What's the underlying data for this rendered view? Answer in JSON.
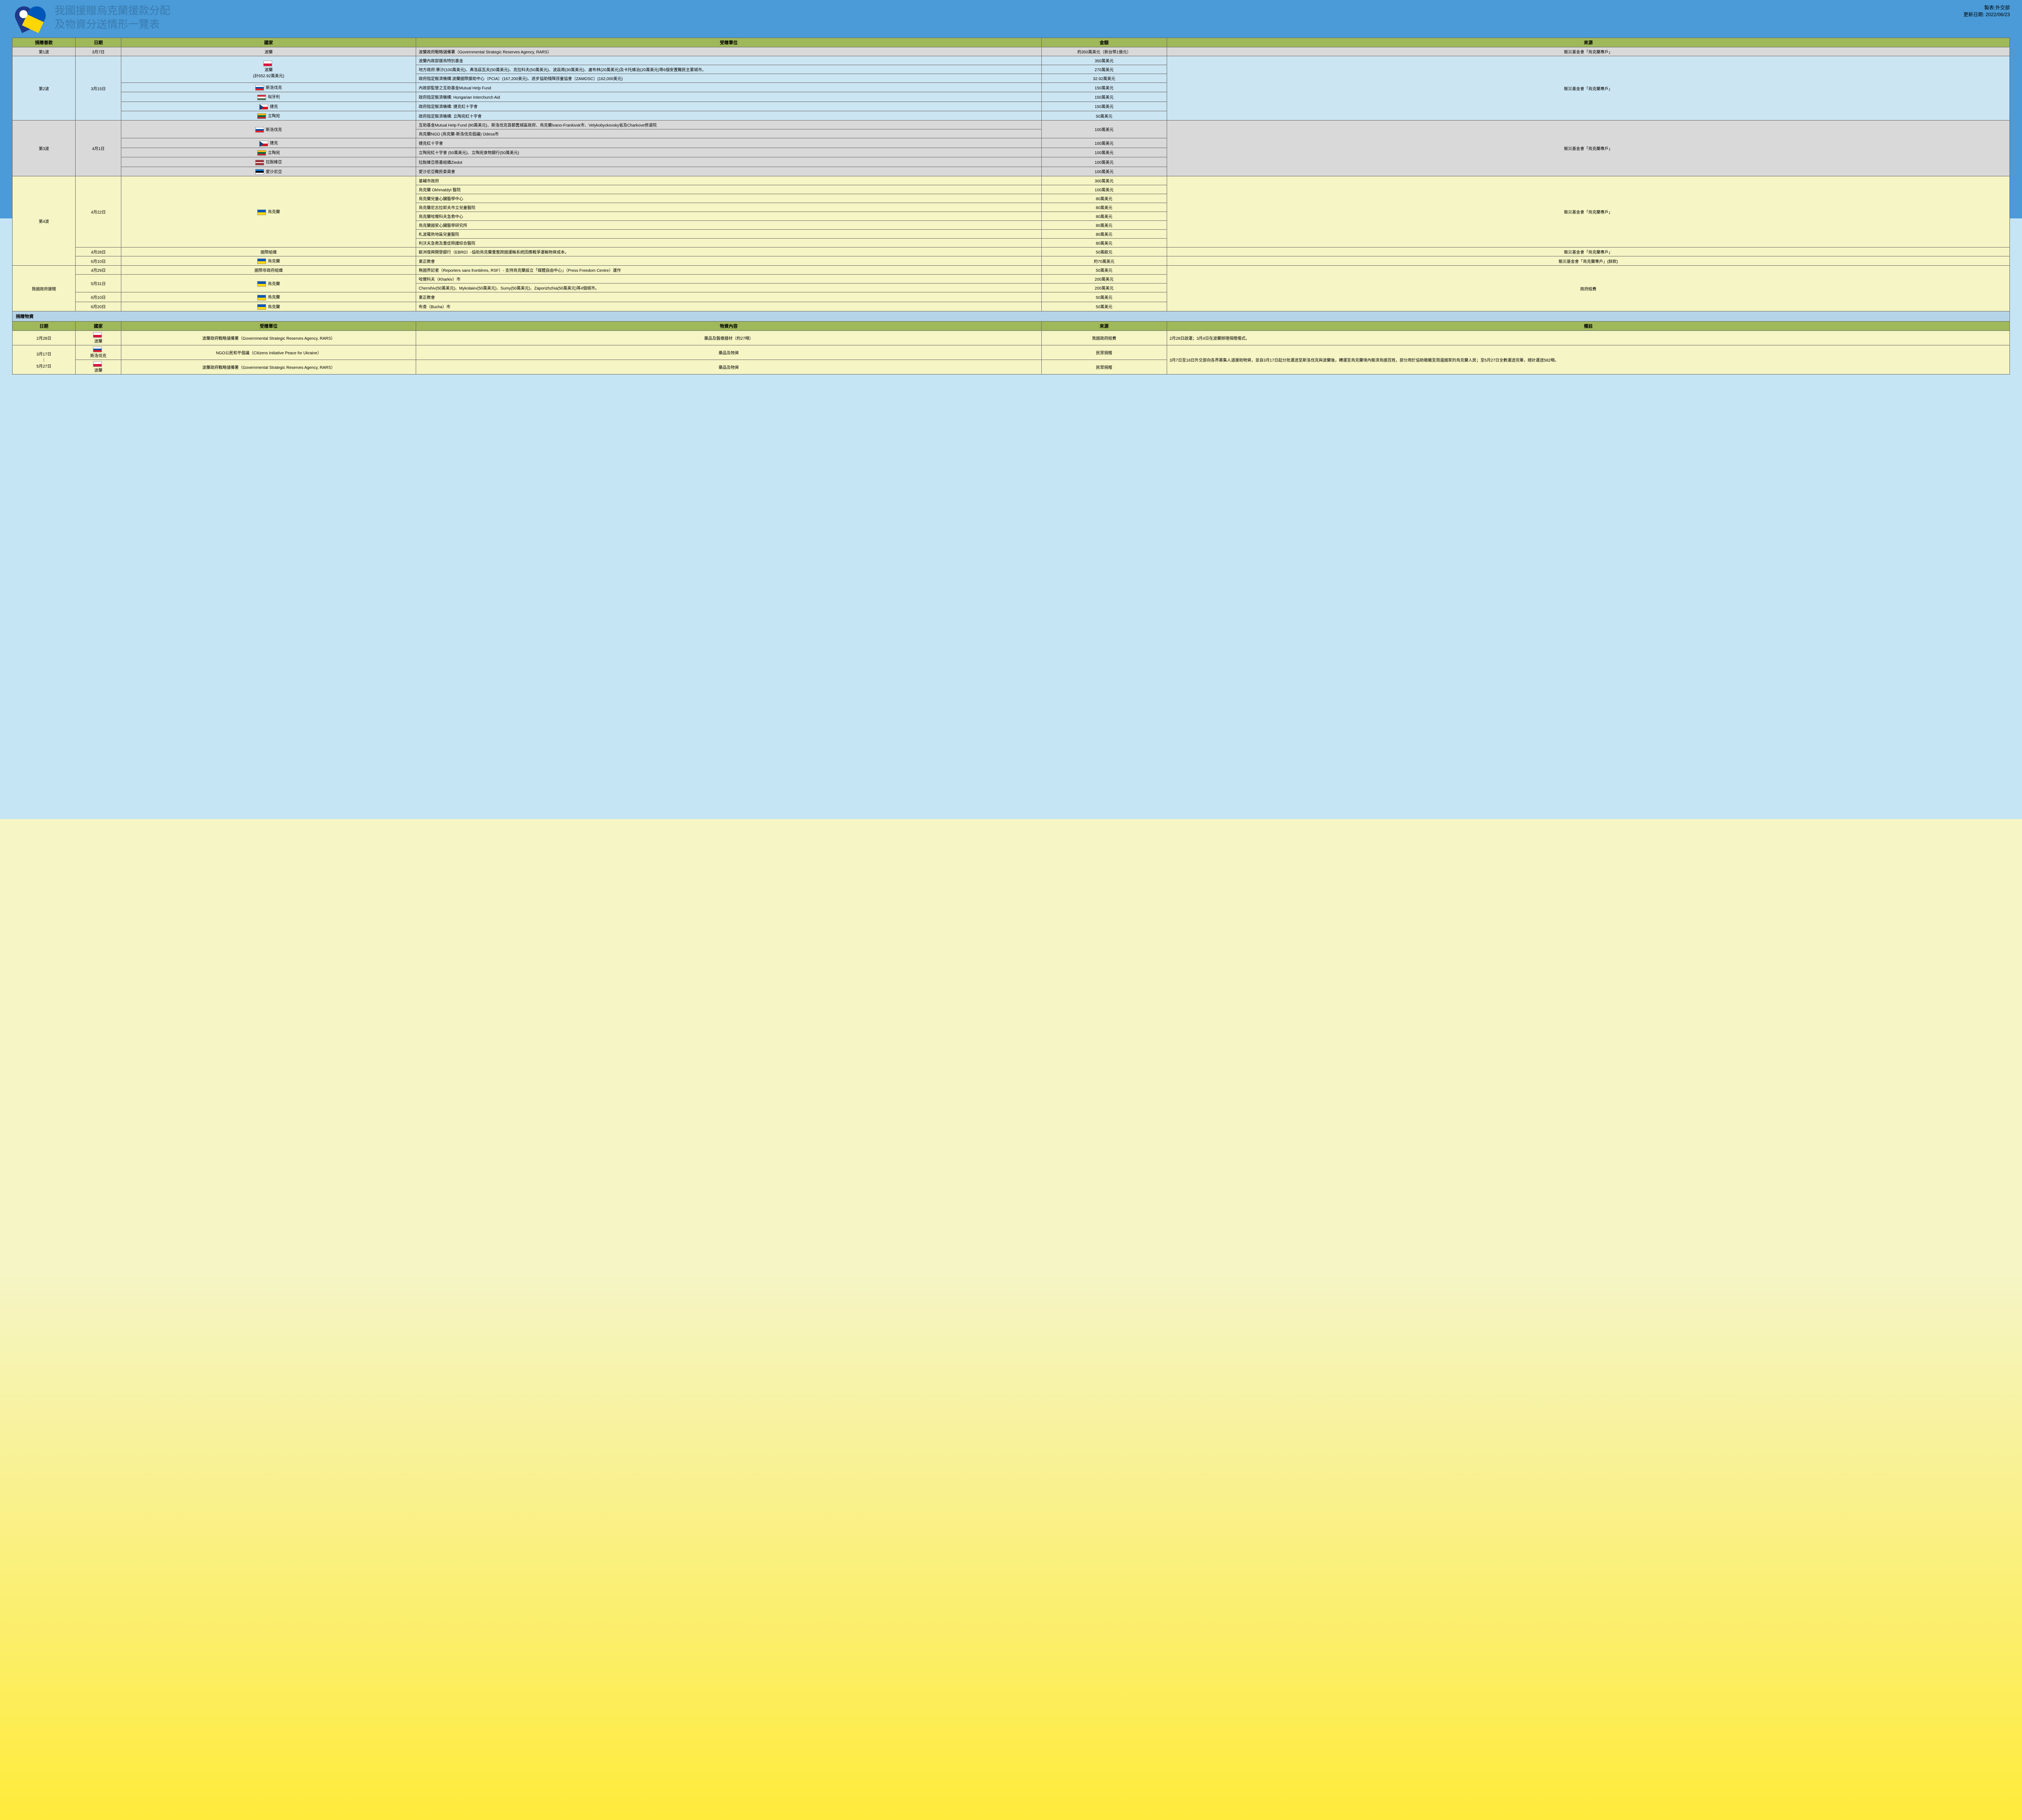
{
  "title1": "我國援贈烏克蘭援款分配",
  "title2": "及物資分送情形一覽表",
  "meta1": "製表:外交部",
  "meta2": "更新日期: 2022/06/23",
  "h": {
    "donate": "捐贈善款",
    "date": "日期",
    "country": "國家",
    "recipient": "受贈單位",
    "amount": "金額",
    "source": "來源",
    "materials": "捐贈物資",
    "content": "物資內容",
    "note": "備註"
  },
  "w1": {
    "wave": "第1波",
    "date": "3月7日",
    "country": "波蘭",
    "recip": "波蘭政府戰略儲備署（Governmental Strategic Reserves Agency, RARS）",
    "amt": "約350萬美元（新台幣1億元）",
    "src": "賑災基金會「烏克蘭專戶」"
  },
  "w2": {
    "wave": "第2波",
    "date": "3月15日",
    "pl": "波蘭",
    "pl_sub": "(計652.92萬美元)",
    "r1": {
      "recip": "波蘭內政部援烏特別基金",
      "amt": "350萬美元"
    },
    "r2": {
      "recip": "地方政府:華沙(100萬美元)、弗洛茲瓦夫(50萬美元)、克拉科夫(50萬美元)、波茲南(30萬美元)、盧布林(20萬美元)及卡托維治(20萬美元)等6個安置難民主要城市。",
      "amt": "270萬美元"
    },
    "r3": {
      "recip": "政府指定賑濟機構:波蘭國際援助中心（PCIA）(167,200美元)、逐步協助殘障孩童協會（ZAMOSC）(162,000美元)",
      "amt": "32.92萬美元"
    },
    "sk": {
      "c": "斯洛伐克",
      "recip": "內政部監管之互助基金Mutual Help Fund",
      "amt": "150萬美元"
    },
    "hu": {
      "c": "匈牙利",
      "recip": "政府指定賑濟機構: Hungarian Interchurch Aid",
      "amt": "150萬美元"
    },
    "cz": {
      "c": "捷克",
      "recip": "政府指定賑濟機構: 捷克紅十字會",
      "amt": "150萬美元"
    },
    "lt": {
      "c": "立陶宛",
      "recip": "政府指定賑濟機構: 立陶宛紅十字會",
      "amt": "50萬美元"
    },
    "src": "賑災基金會「烏克蘭專戶」"
  },
  "w3": {
    "wave": "第3波",
    "date": "4月1日",
    "sk": {
      "c": "斯洛伐克",
      "r1": "互助基金Mutual Help Fund (80萬美元)、斯洛伐克首都舊城區政府、烏克蘭Ivano-Frankivsk市、Velykobyckovsky省及Charkove修道院",
      "r2": "烏克蘭NGO (烏克蘭-斯洛伐克倡議) Odesa市",
      "amt": "100萬美元"
    },
    "cz": {
      "c": "捷克",
      "recip": "捷克紅十字會",
      "amt": "100萬美元"
    },
    "lt": {
      "c": "立陶宛",
      "recip": "立陶宛紅十字會 (50萬美元)、立陶宛食物銀行(50萬美元)",
      "amt": "100萬美元"
    },
    "lv": {
      "c": "拉脫維亞",
      "recip": "拉脫維亞慈善組織Ziedot",
      "amt": "100萬美元"
    },
    "ee": {
      "c": "愛沙尼亞",
      "recip": "愛沙尼亞難民委員會",
      "amt": "100萬美元"
    },
    "src": "賑災基金會「烏克蘭專戶」"
  },
  "w4": {
    "wave": "第4波",
    "d1": "4月22日",
    "c1": "烏克蘭",
    "r1": {
      "recip": "基輔市政府",
      "amt": "300萬美元"
    },
    "r2": {
      "recip": "烏克蘭 Okhmatdyt 醫院",
      "amt": "100萬美元"
    },
    "r3": {
      "recip": "烏克蘭兒童心臟醫學中心",
      "amt": "80萬美元"
    },
    "r4": {
      "recip": "烏克蘭尼古拉耶夫市立兒童醫院",
      "amt": "80萬美元"
    },
    "r5": {
      "recip": "烏克蘭哈爾科夫急救中心",
      "amt": "80萬美元"
    },
    "r6": {
      "recip": "烏克蘭國家心臟醫學研究所",
      "amt": "80萬美元"
    },
    "r7": {
      "recip": "札波羅熱地區兒童醫院",
      "amt": "80萬美元"
    },
    "r8": {
      "recip": "利沃夫急救及重症照護綜合醫院",
      "amt": "80萬美元"
    },
    "src1": "賑災基金會「烏克蘭專戶」",
    "d2": "4月28日",
    "c2": "國際組織",
    "r9": {
      "recip": "歐洲復興開發銀行（EBRD）-協助烏克蘭重整跨國運輸系統因應戰爭運輸物資成本。",
      "amt": "50萬歐元"
    },
    "src2": "賑災基金會「烏克蘭專戶」",
    "d3": "6月10日",
    "c3": "烏克蘭",
    "r10": {
      "recip": "東正教會",
      "amt": "約70萬美元"
    },
    "src3": "賑災基金會「烏克蘭專戶」(餘款)"
  },
  "gov": {
    "wave": "我國政府援贈",
    "r1": {
      "d": "4月29日",
      "c": "國際非政府組織",
      "recip": "無國界記者（Reporters sans frontières, RSF）- 支持烏克蘭設立「媒體自由中心」（Press Freedom Centre）運作",
      "amt": "50萬美元"
    },
    "r2": {
      "d": "5月31日",
      "c": "烏克蘭",
      "recip": "哈爾科夫（Kharkiv）市",
      "amt": "200萬美元"
    },
    "r3": {
      "recip": "Chernihiv(50萬美元)、Mykolaiev(50萬美元)、Sumy(50萬美元)、Zaporizhzhia(50萬美元)等4個城市。",
      "amt": "200萬美元"
    },
    "r4": {
      "d": "6月10日",
      "c": "烏克蘭",
      "recip": "東正教會",
      "amt": "50萬美元"
    },
    "r5": {
      "d": "6月20日",
      "c": "烏克蘭",
      "recip": "布查（Bucha）市",
      "amt": "50萬美元"
    },
    "src": "政府經費"
  },
  "mat": {
    "r1": {
      "d": "2月28日",
      "c": "波蘭",
      "recip": "波蘭政府戰略儲備署（Governmental Strategic Reserves Agency, RARS）",
      "content": "藥品及醫療器材（約27噸）",
      "src": "我國政府經費",
      "note": "2月28日啟運；3月4日在波蘭辦理捐贈儀式。"
    },
    "r2": {
      "d": "3月17日\n｜\n5月27日",
      "c1": "斯洛伐克",
      "recip1": "NGO公民和平倡議（Citizens Initiative Peace for Ukraine）",
      "content1": "藥品及物資",
      "src1": "民眾捐贈",
      "c2": "波蘭",
      "recip2": "波蘭政府戰略儲備署（Governmental Strategic Reserves Agency, RARS）",
      "content2": "藥品及物資",
      "src2": "民眾捐贈",
      "note": "3月7日至18日外交部向各界募集人道援助物資，並自3月17日起分批運送至斯洛伐克與波蘭後，轉運至烏克蘭境內賑濟烏國百姓，部分用於協助撤離至周邊國家的烏克蘭人民；至5月27日全數運送完畢，總計運送582噸。"
    }
  }
}
